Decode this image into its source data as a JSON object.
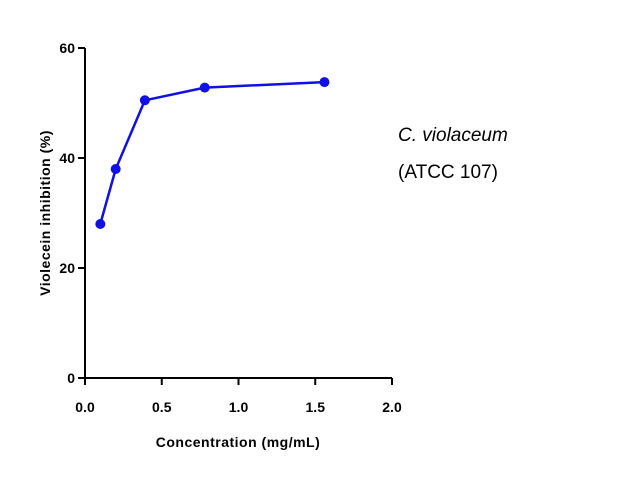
{
  "chart_data": {
    "type": "line",
    "xlabel": "Concentration (mg/mL)",
    "ylabel": "Violecein inhibition (%)",
    "xlim": [
      0.0,
      2.0
    ],
    "ylim": [
      0,
      60
    ],
    "x_ticks": [
      "0.0",
      "0.5",
      "1.0",
      "1.5",
      "2.0"
    ],
    "y_ticks": [
      "0",
      "20",
      "40",
      "60"
    ],
    "grid": false,
    "annotation": {
      "line1": "C. violaceum",
      "line2": "(ATCC 107)"
    },
    "series": [
      {
        "x": [
          0.1,
          0.2,
          0.39,
          0.78,
          1.56
        ],
        "y": [
          28,
          38,
          50.5,
          52.8,
          53.8
        ]
      }
    ],
    "colors": {
      "series": "#1010e0",
      "axis": "#000000"
    }
  }
}
